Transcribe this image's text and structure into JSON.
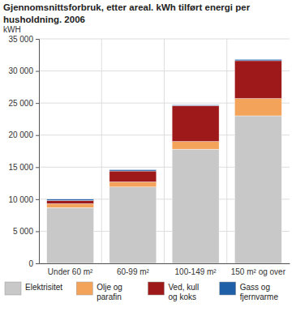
{
  "chart_data": {
    "type": "bar",
    "stacked": true,
    "grid": true,
    "legend": "bottom",
    "title": "Gjennomsnittsforbruk, etter areal. kWh tilført energi per husholdning. 2006",
    "y_label": "kWH",
    "categories": [
      "Under 60 m²",
      "60-99 m²",
      "100-149 m²",
      "150 m² og over"
    ],
    "ylim": [
      0,
      35000
    ],
    "yticks": [
      0,
      {
        "value": 5000,
        "label": "5 000"
      },
      {
        "value": 10000,
        "label": "10 000"
      },
      {
        "value": 15000,
        "label": "15 000"
      },
      {
        "value": 20000,
        "label": "20 000"
      },
      {
        "value": 25000,
        "label": "25 000"
      },
      {
        "value": 30000,
        "label": "30 000"
      },
      {
        "value": 35000,
        "label": "35 000"
      }
    ],
    "series": [
      {
        "name": "Elektrisitet",
        "color": "#c8c8c8",
        "values": [
          8700,
          11900,
          17800,
          23000
        ]
      },
      {
        "name": "Olje og parafin",
        "color": "#f4a45a",
        "values": [
          600,
          800,
          1200,
          2700
        ]
      },
      {
        "name": "Ved, kull og koks",
        "color": "#9e1a1a",
        "values": [
          500,
          1700,
          5600,
          5900
        ]
      },
      {
        "name": "Gass og fjernvarme",
        "color": "#1f5fa8",
        "values": [
          200,
          200,
          100,
          200
        ]
      }
    ]
  }
}
